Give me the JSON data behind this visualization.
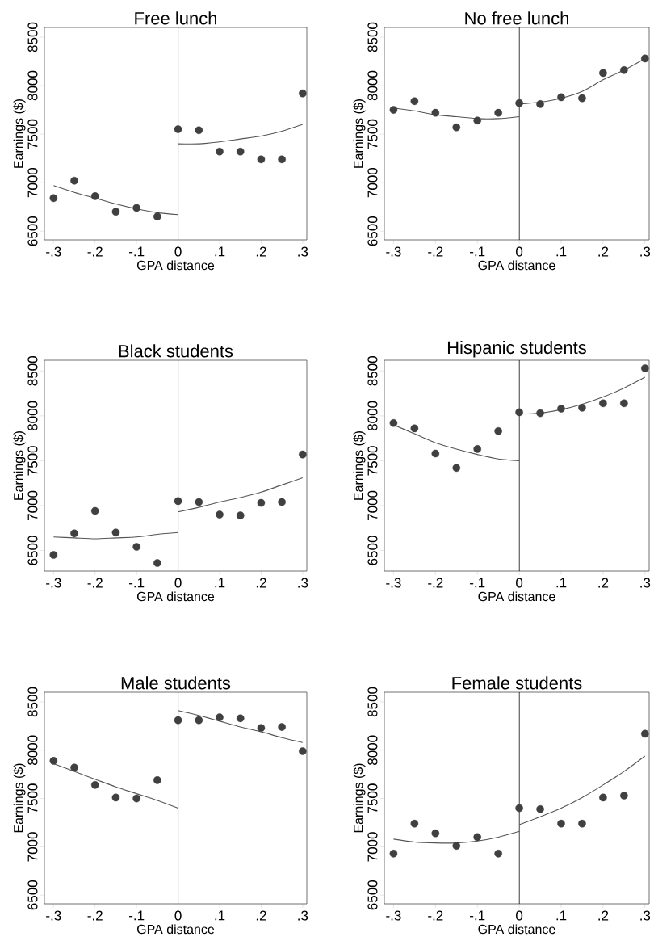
{
  "chart_data": [
    {
      "type": "scatter",
      "title": "Free lunch",
      "xlabel": "GPA distance",
      "ylabel": "Earnings ($)",
      "xlim": [
        -0.322,
        0.31
      ],
      "ylim": [
        6410,
        8600
      ],
      "xticks": [
        {
          "value": -0.3,
          "label": "-.3"
        },
        {
          "value": -0.2,
          "label": "-.2"
        },
        {
          "value": -0.1,
          "label": "-.1"
        },
        0,
        {
          "value": 0.1,
          "label": ".1"
        },
        {
          "value": 0.2,
          "label": ".2"
        },
        {
          "value": 0.3,
          "label": ".3"
        }
      ],
      "yticks": [
        6500,
        7000,
        7500,
        8000,
        8500
      ],
      "ref_lines": [
        {
          "axis": "x",
          "value": 0,
          "color": "#000000"
        }
      ],
      "series": [
        {
          "marker": "circle",
          "color": "#404040",
          "x": [
            -0.3,
            -0.25,
            -0.2,
            -0.15,
            -0.1,
            -0.05,
            0,
            0.05,
            0.1,
            0.15,
            0.2,
            0.25,
            0.3
          ],
          "values": [
            6840,
            7020,
            6860,
            6700,
            6740,
            6650,
            7550,
            7540,
            7320,
            7320,
            7240,
            7240,
            7920
          ]
        },
        {
          "type": "line",
          "color": "#555555",
          "x": [
            -0.3,
            -0.25,
            -0.2,
            -0.15,
            -0.1,
            -0.05,
            0
          ],
          "values": [
            6970,
            6900,
            6840,
            6780,
            6730,
            6690,
            6670
          ]
        },
        {
          "type": "line",
          "color": "#555555",
          "x": [
            0,
            0.05,
            0.1,
            0.15,
            0.2,
            0.25,
            0.3
          ],
          "values": [
            7400,
            7400,
            7420,
            7450,
            7480,
            7530,
            7600
          ]
        }
      ]
    },
    {
      "type": "scatter",
      "title": "No free lunch",
      "xlabel": "GPA distance",
      "ylabel": "Earnings ($)",
      "xlim": [
        -0.322,
        0.31
      ],
      "ylim": [
        6410,
        8600
      ],
      "xticks": [
        {
          "value": -0.3,
          "label": "-.3"
        },
        {
          "value": -0.2,
          "label": "-.2"
        },
        {
          "value": -0.1,
          "label": "-.1"
        },
        0,
        {
          "value": 0.1,
          "label": ".1"
        },
        {
          "value": 0.2,
          "label": ".2"
        },
        {
          "value": 0.3,
          "label": ".3"
        }
      ],
      "yticks": [
        6500,
        7000,
        7500,
        8000,
        8500
      ],
      "ref_lines": [
        {
          "axis": "x",
          "value": 0,
          "color": "#000000"
        }
      ],
      "series": [
        {
          "marker": "circle",
          "color": "#404040",
          "x": [
            -0.3,
            -0.25,
            -0.2,
            -0.15,
            -0.1,
            -0.05,
            0,
            0.05,
            0.1,
            0.15,
            0.2,
            0.25,
            0.3
          ],
          "values": [
            7750,
            7840,
            7720,
            7570,
            7640,
            7720,
            7820,
            7810,
            7880,
            7870,
            8130,
            8160,
            8280
          ]
        },
        {
          "type": "line",
          "color": "#555555",
          "x": [
            -0.3,
            -0.25,
            -0.2,
            -0.15,
            -0.1,
            -0.05,
            0
          ],
          "values": [
            7770,
            7740,
            7700,
            7680,
            7660,
            7660,
            7680
          ]
        },
        {
          "type": "line",
          "color": "#555555",
          "x": [
            0,
            0.05,
            0.1,
            0.15,
            0.2,
            0.25,
            0.3
          ],
          "values": [
            7810,
            7830,
            7870,
            7940,
            8060,
            8160,
            8280
          ]
        }
      ]
    },
    {
      "type": "scatter",
      "title": "Black students",
      "xlabel": "GPA distance",
      "ylabel": "Earnings ($)",
      "xlim": [
        -0.322,
        0.31
      ],
      "ylim": [
        6270,
        8620
      ],
      "xticks": [
        {
          "value": -0.3,
          "label": "-.3"
        },
        {
          "value": -0.2,
          "label": "-.2"
        },
        {
          "value": -0.1,
          "label": "-.1"
        },
        0,
        {
          "value": 0.1,
          "label": ".1"
        },
        {
          "value": 0.2,
          "label": ".2"
        },
        {
          "value": 0.3,
          "label": ".3"
        }
      ],
      "yticks": [
        6500,
        7000,
        7500,
        8000,
        8500
      ],
      "ref_lines": [
        {
          "axis": "x",
          "value": 0,
          "color": "#000000"
        }
      ],
      "series": [
        {
          "marker": "circle",
          "color": "#404040",
          "x": [
            -0.3,
            -0.25,
            -0.2,
            -0.15,
            -0.1,
            -0.05,
            0,
            0.05,
            0.1,
            0.15,
            0.2,
            0.25,
            0.3
          ],
          "values": [
            6450,
            6690,
            6940,
            6700,
            6540,
            6360,
            7050,
            7040,
            6900,
            6890,
            7030,
            7040,
            7570
          ]
        },
        {
          "type": "line",
          "color": "#555555",
          "x": [
            -0.3,
            -0.25,
            -0.2,
            -0.15,
            -0.1,
            -0.05,
            0
          ],
          "values": [
            6650,
            6640,
            6630,
            6640,
            6650,
            6680,
            6700
          ]
        },
        {
          "type": "line",
          "color": "#555555",
          "x": [
            0,
            0.05,
            0.1,
            0.15,
            0.2,
            0.25,
            0.3
          ],
          "values": [
            6930,
            6980,
            7040,
            7090,
            7150,
            7230,
            7310
          ]
        }
      ]
    },
    {
      "type": "scatter",
      "title": "Hispanic students",
      "xlabel": "GPA distance",
      "ylabel": "Earnings ($)",
      "xlim": [
        -0.322,
        0.31
      ],
      "ylim": [
        6270,
        8620
      ],
      "xticks": [
        {
          "value": -0.3,
          "label": "-.3"
        },
        {
          "value": -0.2,
          "label": "-.2"
        },
        {
          "value": -0.1,
          "label": "-.1"
        },
        0,
        {
          "value": 0.1,
          "label": ".1"
        },
        {
          "value": 0.2,
          "label": ".2"
        },
        {
          "value": 0.3,
          "label": ".3"
        }
      ],
      "yticks": [
        6500,
        7000,
        7500,
        8000,
        8500
      ],
      "ref_lines": [
        {
          "axis": "x",
          "value": 0,
          "color": "#000000"
        }
      ],
      "series": [
        {
          "marker": "circle",
          "color": "#404040",
          "x": [
            -0.3,
            -0.25,
            -0.2,
            -0.15,
            -0.1,
            -0.05,
            0,
            0.05,
            0.1,
            0.15,
            0.2,
            0.25,
            0.3
          ],
          "values": [
            7920,
            7860,
            7580,
            7420,
            7630,
            7830,
            8040,
            8030,
            8080,
            8090,
            8140,
            8140,
            8530
          ]
        },
        {
          "type": "line",
          "color": "#555555",
          "x": [
            -0.3,
            -0.25,
            -0.2,
            -0.15,
            -0.1,
            -0.05,
            0
          ],
          "values": [
            7900,
            7800,
            7700,
            7630,
            7570,
            7520,
            7500
          ]
        },
        {
          "type": "line",
          "color": "#555555",
          "x": [
            0,
            0.05,
            0.1,
            0.15,
            0.2,
            0.25,
            0.3
          ],
          "values": [
            8020,
            8030,
            8070,
            8130,
            8210,
            8310,
            8430
          ]
        }
      ]
    },
    {
      "type": "scatter",
      "title": "Male students",
      "xlabel": "GPA distance",
      "ylabel": "Earnings ($)",
      "xlim": [
        -0.322,
        0.31
      ],
      "ylim": [
        6410,
        8600
      ],
      "xticks": [
        {
          "value": -0.3,
          "label": "-.3"
        },
        {
          "value": -0.2,
          "label": "-.2"
        },
        {
          "value": -0.1,
          "label": "-.1"
        },
        0,
        {
          "value": 0.1,
          "label": ".1"
        },
        {
          "value": 0.2,
          "label": ".2"
        },
        {
          "value": 0.3,
          "label": ".3"
        }
      ],
      "yticks": [
        6500,
        7000,
        7500,
        8000,
        8500
      ],
      "ref_lines": [
        {
          "axis": "x",
          "value": 0,
          "color": "#000000"
        }
      ],
      "series": [
        {
          "marker": "circle",
          "color": "#404040",
          "x": [
            -0.3,
            -0.25,
            -0.2,
            -0.15,
            -0.1,
            -0.05,
            0,
            0.05,
            0.1,
            0.15,
            0.2,
            0.25,
            0.3
          ],
          "values": [
            7890,
            7820,
            7640,
            7510,
            7500,
            7690,
            8310,
            8310,
            8340,
            8330,
            8230,
            8240,
            7990
          ]
        },
        {
          "type": "line",
          "color": "#555555",
          "x": [
            -0.3,
            -0.25,
            -0.2,
            -0.15,
            -0.1,
            -0.05,
            0
          ],
          "values": [
            7860,
            7780,
            7700,
            7620,
            7550,
            7480,
            7400
          ]
        },
        {
          "type": "line",
          "color": "#555555",
          "x": [
            0,
            0.05,
            0.1,
            0.15,
            0.2,
            0.25,
            0.3
          ],
          "values": [
            8410,
            8360,
            8300,
            8240,
            8190,
            8130,
            8080
          ]
        }
      ]
    },
    {
      "type": "scatter",
      "title": "Female students",
      "xlabel": "GPA distance",
      "ylabel": "Earnings ($)",
      "xlim": [
        -0.322,
        0.31
      ],
      "ylim": [
        6410,
        8600
      ],
      "xticks": [
        {
          "value": -0.3,
          "label": "-.3"
        },
        {
          "value": -0.2,
          "label": "-.2"
        },
        {
          "value": -0.1,
          "label": "-.1"
        },
        0,
        {
          "value": 0.1,
          "label": ".1"
        },
        {
          "value": 0.2,
          "label": ".2"
        },
        {
          "value": 0.3,
          "label": ".3"
        }
      ],
      "yticks": [
        6500,
        7000,
        7500,
        8000,
        8500
      ],
      "ref_lines": [
        {
          "axis": "x",
          "value": 0,
          "color": "#000000"
        }
      ],
      "series": [
        {
          "marker": "circle",
          "color": "#404040",
          "x": [
            -0.3,
            -0.25,
            -0.2,
            -0.15,
            -0.1,
            -0.05,
            0,
            0.05,
            0.1,
            0.15,
            0.2,
            0.25,
            0.3
          ],
          "values": [
            6930,
            7240,
            7140,
            7010,
            7100,
            6930,
            7400,
            7390,
            7240,
            7240,
            7510,
            7530,
            8170
          ]
        },
        {
          "type": "line",
          "color": "#555555",
          "x": [
            -0.3,
            -0.25,
            -0.2,
            -0.15,
            -0.1,
            -0.05,
            0
          ],
          "values": [
            7080,
            7050,
            7040,
            7040,
            7060,
            7100,
            7160
          ]
        },
        {
          "type": "line",
          "color": "#555555",
          "x": [
            0,
            0.05,
            0.1,
            0.15,
            0.2,
            0.25,
            0.3
          ],
          "values": [
            7230,
            7310,
            7400,
            7510,
            7640,
            7780,
            7940
          ]
        }
      ]
    }
  ]
}
